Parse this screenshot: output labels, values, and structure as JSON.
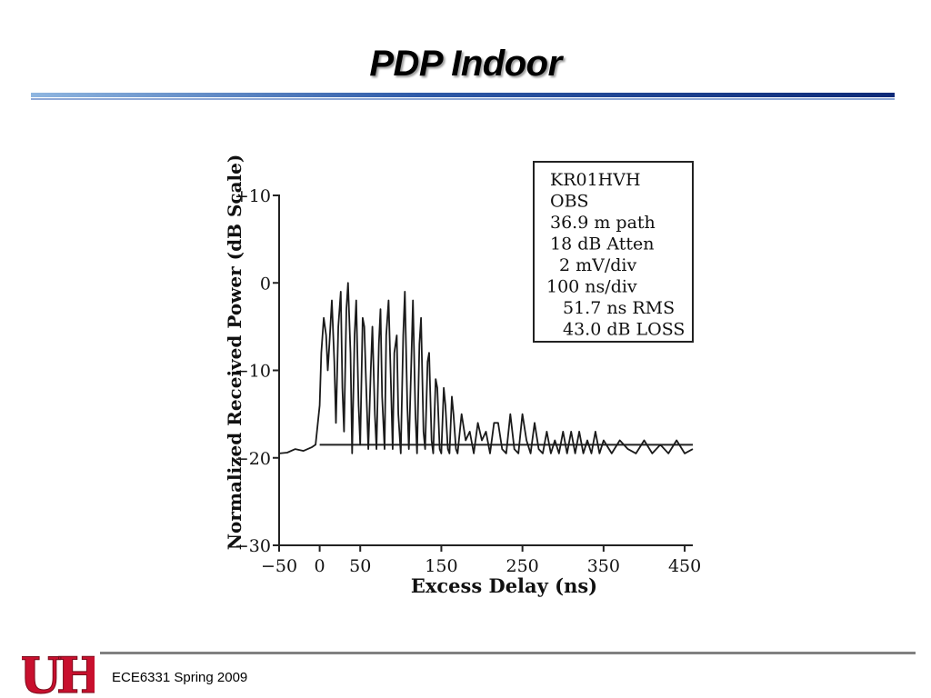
{
  "slide": {
    "title": "PDP Indoor",
    "footer": "ECE6331 Spring 2009",
    "logo_text": "UH",
    "accent_color": "#1f3f8f",
    "logo_color": "#c8102e"
  },
  "chart_data": {
    "type": "line",
    "title": "",
    "xlabel": "Excess Delay (ns)",
    "ylabel": "Normalized Received Power (dB Scale)",
    "xlim": [
      -50,
      460
    ],
    "ylim": [
      -30,
      10
    ],
    "xticks": [
      -50,
      0,
      50,
      150,
      250,
      350,
      450
    ],
    "xtick_labels": [
      "−50",
      "0",
      "50",
      "150",
      "250",
      "350",
      "450"
    ],
    "yticks": [
      10,
      0,
      -10,
      -20,
      -30
    ],
    "ytick_labels": [
      "+10",
      "0",
      "−10",
      "−20",
      "−30"
    ],
    "noise_threshold_db": -18.5,
    "annotation_lines": [
      "KR01HVH",
      "OBS",
      "36.9 m path",
      "18 dB Atten",
      "2 mV/div",
      "100 ns/div",
      "51.7 ns RMS",
      "43.0 dB LOSS"
    ],
    "series": [
      {
        "x": [
          -50,
          -40,
          -30,
          -20,
          -10,
          -5,
          0,
          2,
          5,
          8,
          10,
          12,
          15,
          18,
          20,
          23,
          26,
          28,
          30,
          33,
          35,
          38,
          40,
          43,
          45,
          48,
          50,
          53,
          55,
          57,
          60,
          63,
          65,
          68,
          70,
          73,
          75,
          77,
          80,
          82,
          85,
          88,
          90,
          92,
          95,
          97,
          100,
          103,
          105,
          108,
          110,
          113,
          115,
          118,
          120,
          123,
          125,
          128,
          130,
          133,
          135,
          138,
          140,
          143,
          145,
          148,
          150,
          153,
          155,
          158,
          160,
          163,
          165,
          168,
          170,
          175,
          180,
          185,
          190,
          195,
          200,
          205,
          210,
          215,
          220,
          225,
          230,
          235,
          240,
          245,
          250,
          255,
          260,
          265,
          270,
          275,
          280,
          285,
          290,
          295,
          300,
          305,
          310,
          315,
          320,
          325,
          330,
          335,
          340,
          345,
          350,
          360,
          370,
          380,
          390,
          400,
          410,
          420,
          430,
          440,
          450,
          460
        ],
        "y": [
          -19.5,
          -19.4,
          -19.0,
          -19.2,
          -18.8,
          -18.5,
          -14,
          -8,
          -4,
          -6,
          -10,
          -7,
          -2,
          -9,
          -16,
          -5,
          -1,
          -12,
          -17,
          -3,
          0,
          -8,
          -19.5,
          -6,
          -2,
          -14,
          -18.5,
          -4,
          -5,
          -11,
          -19,
          -10,
          -5,
          -15,
          -19,
          -7,
          -3,
          -13,
          -19,
          -6,
          -2,
          -12,
          -19,
          -8,
          -6,
          -15,
          -19.5,
          -6,
          -1,
          -14,
          -19,
          -9,
          -2,
          -15,
          -19.5,
          -7,
          -4,
          -17,
          -19,
          -9,
          -8,
          -18,
          -19.5,
          -11,
          -12,
          -19,
          -19.5,
          -12,
          -14,
          -19,
          -19.5,
          -13,
          -15,
          -19,
          -19.5,
          -15,
          -18,
          -17,
          -19.5,
          -16,
          -18,
          -17,
          -19.5,
          -16,
          -16,
          -19,
          -19.5,
          -15,
          -19,
          -19.5,
          -15,
          -18,
          -19.5,
          -16,
          -19,
          -19.5,
          -17,
          -19.5,
          -18,
          -19.5,
          -17,
          -19.5,
          -17,
          -19.5,
          -17,
          -19.5,
          -18,
          -19.5,
          -17,
          -19.5,
          -18,
          -19.5,
          -18,
          -19,
          -19.5,
          -18,
          -19.5,
          -18.5,
          -19.5,
          -18,
          -19.5,
          -19
        ]
      }
    ]
  }
}
